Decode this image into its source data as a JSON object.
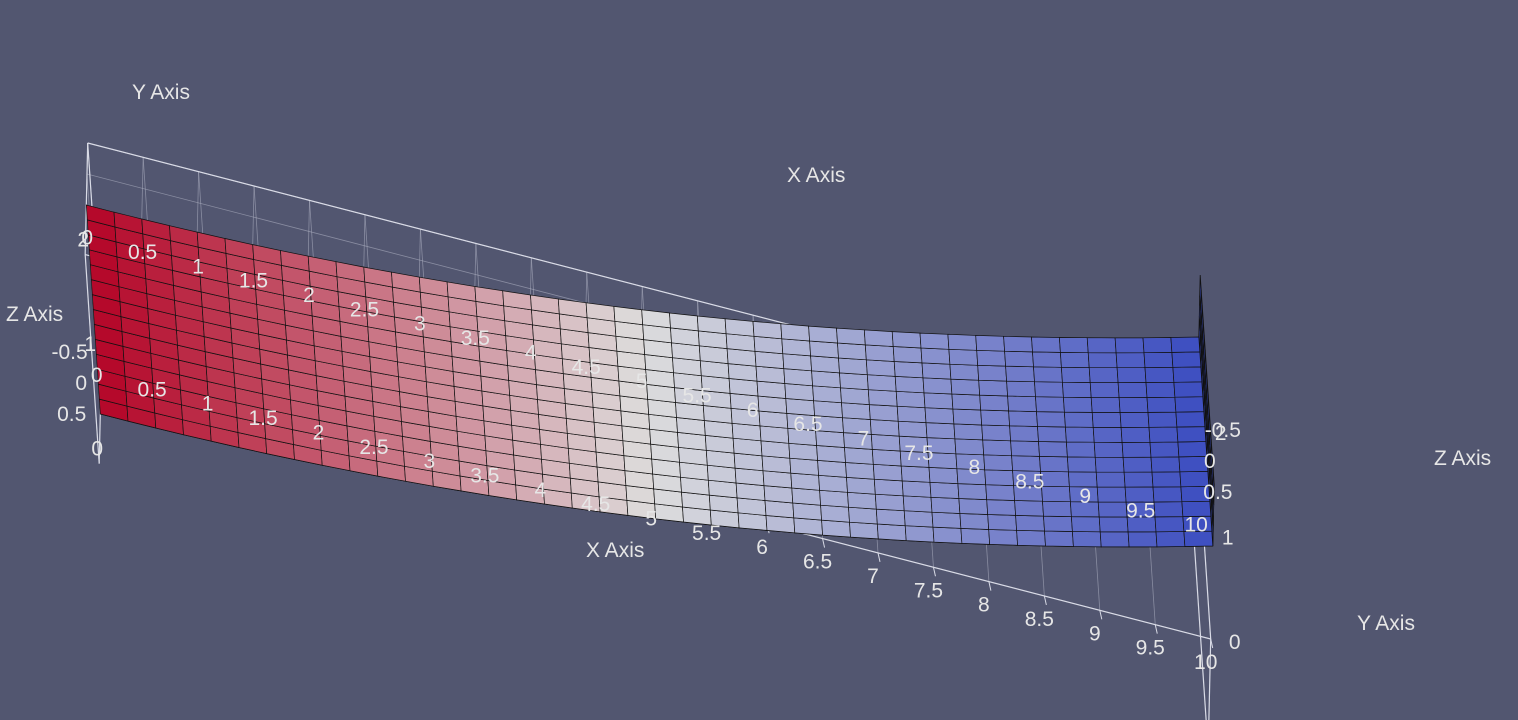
{
  "view": {
    "background_color": "#525670",
    "colormap": [
      "#3b4cc0",
      "#dddddd",
      "#b40426"
    ],
    "label_color": "#e6e6e6",
    "grid_color": "#aeb1c2",
    "mesh_line_color": "#111111"
  },
  "mesh": {
    "x_cells": 40,
    "y_cells": 14,
    "z_layers": 3,
    "x_range": [
      0,
      10
    ],
    "y_range": [
      0,
      2
    ],
    "z_range": [
      -0.5,
      0.5
    ]
  },
  "axes": {
    "x_title": "X Axis",
    "y_title": "Y Axis",
    "z_title": "Z Axis",
    "x_ticks": [
      "0",
      "0.5",
      "1",
      "1.5",
      "2",
      "2.5",
      "3",
      "3.5",
      "4",
      "4.5",
      "5",
      "5.5",
      "6",
      "6.5",
      "7",
      "7.5",
      "8",
      "8.5",
      "9",
      "9.5",
      "10"
    ],
    "y_ticks_back": [
      "2",
      "1",
      "0"
    ],
    "y_ticks_front": [
      "0",
      "1",
      "2"
    ],
    "z_ticks_left": [
      "0.5",
      "0",
      "-0.5"
    ],
    "z_ticks_right": [
      "0.5",
      "0",
      "-0.5"
    ]
  }
}
